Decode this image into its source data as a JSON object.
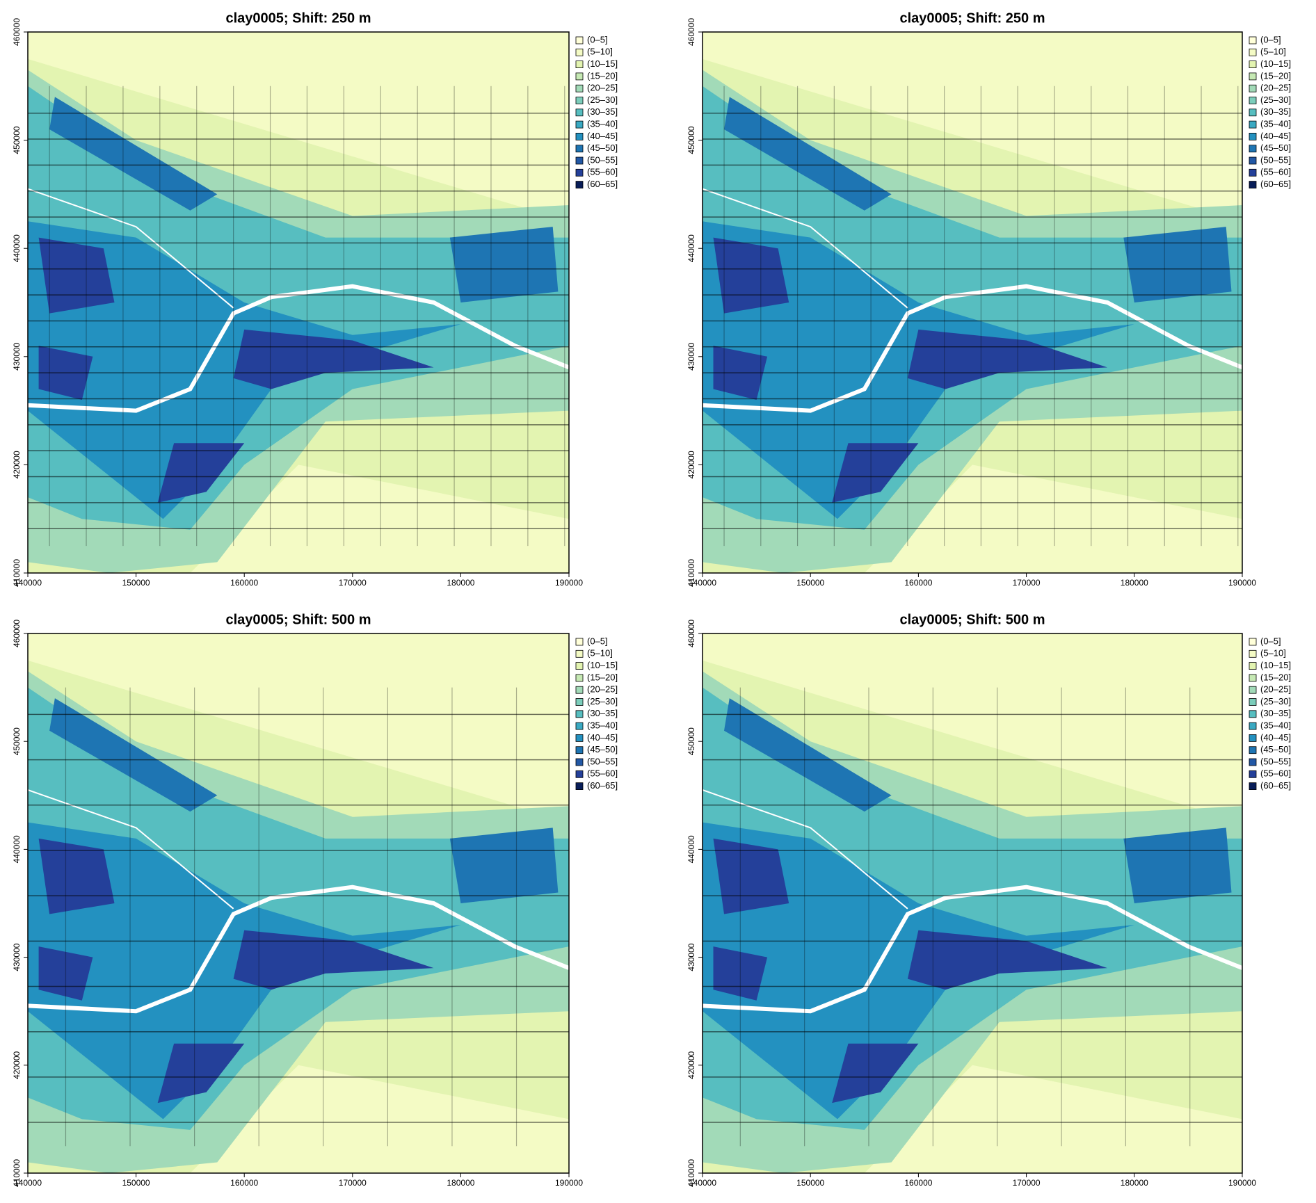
{
  "chart_data": [
    {
      "type": "map",
      "title": "clay0005; Shift: 250 m",
      "xlim": [
        140000,
        190000
      ],
      "ylim": [
        410000,
        460000
      ],
      "xticks": [
        140000,
        150000,
        160000,
        170000,
        180000,
        190000
      ],
      "yticks": [
        410000,
        420000,
        430000,
        440000,
        450000,
        460000
      ],
      "legend": [
        {
          "name": "(0–5]",
          "color": "#ffffd9"
        },
        {
          "name": "(5–10]",
          "color": "#f4fbc5"
        },
        {
          "name": "(10–15]",
          "color": "#e3f4b1"
        },
        {
          "name": "(15–20]",
          "color": "#c6e9b4"
        },
        {
          "name": "(20–25]",
          "color": "#a2dab8"
        },
        {
          "name": "(25–30]",
          "color": "#7ccdbb"
        },
        {
          "name": "(30–35]",
          "color": "#57bec0"
        },
        {
          "name": "(35–40]",
          "color": "#3aa9c2"
        },
        {
          "name": "(40–45]",
          "color": "#2391c0"
        },
        {
          "name": "(45–50]",
          "color": "#1e75b3"
        },
        {
          "name": "(50–55]",
          "color": "#2258a5"
        },
        {
          "name": "(55–60]",
          "color": "#24409a"
        },
        {
          "name": "(60–65]",
          "color": "#081d58"
        }
      ]
    },
    {
      "type": "map",
      "title": "clay0005; Shift: 250 m",
      "xlim": [
        140000,
        190000
      ],
      "ylim": [
        410000,
        460000
      ],
      "xticks": [
        140000,
        150000,
        160000,
        170000,
        180000,
        190000
      ],
      "yticks": [
        410000,
        420000,
        430000,
        440000,
        450000,
        460000
      ],
      "legend": [
        {
          "name": "(0–5]",
          "color": "#ffffd9"
        },
        {
          "name": "(5–10]",
          "color": "#f4fbc5"
        },
        {
          "name": "(10–15]",
          "color": "#e3f4b1"
        },
        {
          "name": "(15–20]",
          "color": "#c6e9b4"
        },
        {
          "name": "(20–25]",
          "color": "#a2dab8"
        },
        {
          "name": "(25–30]",
          "color": "#7ccdbb"
        },
        {
          "name": "(30–35]",
          "color": "#57bec0"
        },
        {
          "name": "(35–40]",
          "color": "#3aa9c2"
        },
        {
          "name": "(40–45]",
          "color": "#2391c0"
        },
        {
          "name": "(45–50]",
          "color": "#1e75b3"
        },
        {
          "name": "(50–55]",
          "color": "#2258a5"
        },
        {
          "name": "(55–60]",
          "color": "#24409a"
        },
        {
          "name": "(60–65]",
          "color": "#081d58"
        }
      ]
    },
    {
      "type": "map",
      "title": "clay0005; Shift: 500 m",
      "xlim": [
        140000,
        190000
      ],
      "ylim": [
        410000,
        460000
      ],
      "xticks": [
        140000,
        150000,
        160000,
        170000,
        180000,
        190000
      ],
      "yticks": [
        410000,
        420000,
        430000,
        440000,
        450000,
        460000
      ],
      "legend": [
        {
          "name": "(0–5]",
          "color": "#ffffd9"
        },
        {
          "name": "(5–10]",
          "color": "#f4fbc5"
        },
        {
          "name": "(10–15]",
          "color": "#e3f4b1"
        },
        {
          "name": "(15–20]",
          "color": "#c6e9b4"
        },
        {
          "name": "(20–25]",
          "color": "#a2dab8"
        },
        {
          "name": "(25–30]",
          "color": "#7ccdbb"
        },
        {
          "name": "(30–35]",
          "color": "#57bec0"
        },
        {
          "name": "(35–40]",
          "color": "#3aa9c2"
        },
        {
          "name": "(40–45]",
          "color": "#2391c0"
        },
        {
          "name": "(45–50]",
          "color": "#1e75b3"
        },
        {
          "name": "(50–55]",
          "color": "#2258a5"
        },
        {
          "name": "(55–60]",
          "color": "#24409a"
        },
        {
          "name": "(60–65]",
          "color": "#081d58"
        }
      ]
    },
    {
      "type": "map",
      "title": "clay0005; Shift: 500 m",
      "xlim": [
        140000,
        190000
      ],
      "ylim": [
        410000,
        460000
      ],
      "xticks": [
        140000,
        150000,
        160000,
        170000,
        180000,
        190000
      ],
      "yticks": [
        410000,
        420000,
        430000,
        440000,
        450000,
        460000
      ],
      "legend": [
        {
          "name": "(0–5]",
          "color": "#ffffd9"
        },
        {
          "name": "(5–10]",
          "color": "#f4fbc5"
        },
        {
          "name": "(10–15]",
          "color": "#e3f4b1"
        },
        {
          "name": "(15–20]",
          "color": "#c6e9b4"
        },
        {
          "name": "(20–25]",
          "color": "#a2dab8"
        },
        {
          "name": "(25–30]",
          "color": "#7ccdbb"
        },
        {
          "name": "(30–35]",
          "color": "#57bec0"
        },
        {
          "name": "(35–40]",
          "color": "#3aa9c2"
        },
        {
          "name": "(40–45]",
          "color": "#2391c0"
        },
        {
          "name": "(45–50]",
          "color": "#1e75b3"
        },
        {
          "name": "(50–55]",
          "color": "#2258a5"
        },
        {
          "name": "(55–60]",
          "color": "#24409a"
        },
        {
          "name": "(60–65]",
          "color": "#081d58"
        }
      ]
    }
  ]
}
